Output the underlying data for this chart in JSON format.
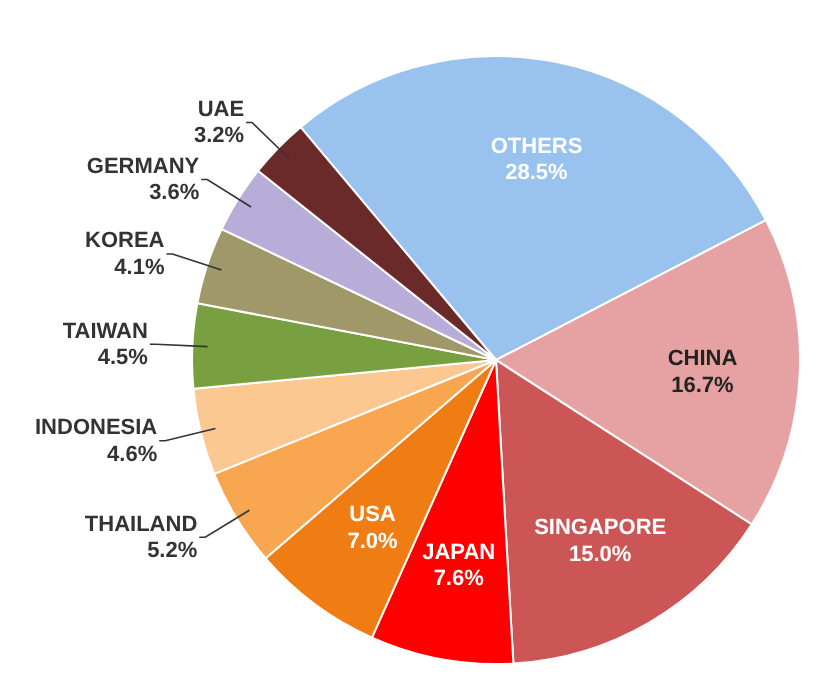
{
  "chart_data": {
    "type": "pie",
    "categories": [
      "OTHERS",
      "CHINA",
      "SINGAPORE",
      "JAPAN",
      "USA",
      "THAILAND",
      "INDONESIA",
      "TAIWAN",
      "KOREA",
      "GERMANY",
      "UAE"
    ],
    "values": [
      28.5,
      16.7,
      15.0,
      7.6,
      7.0,
      5.2,
      4.6,
      4.5,
      4.1,
      3.6,
      3.2
    ],
    "value_labels": [
      "28.5%",
      "16.7%",
      "15.0%",
      "7.6%",
      "7.0%",
      "5.2%",
      "4.6%",
      "4.5%",
      "4.1%",
      "3.6%",
      "3.2%"
    ],
    "colors": [
      "#99c2ef",
      "#e6a2a2",
      "#cc5656",
      "#ff0000",
      "#f07c14",
      "#f8a650",
      "#fbc891",
      "#78a040",
      "#a09868",
      "#b8acd8",
      "#6b2a2a"
    ]
  }
}
